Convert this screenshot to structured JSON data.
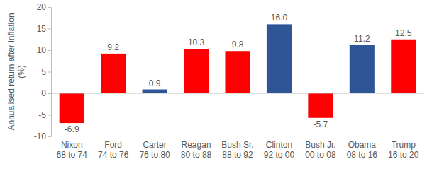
{
  "chart_data": {
    "type": "bar",
    "y_label": "Annualised return after inflation\n(%)",
    "categories": [
      "Nixon\n68 to 74",
      "Ford\n74 to 76",
      "Carter\n76 to 80",
      "Reagan\n80 to 88",
      "Bush Sr.\n88 to 92",
      "Clinton\n92 to 00",
      "Bush Jr.\n00 to 08",
      "Obama\n08 to 16",
      "Trump\n16 to 20"
    ],
    "values": [
      -6.9,
      9.2,
      0.9,
      10.3,
      9.8,
      16.0,
      -5.7,
      11.2,
      12.5
    ],
    "value_labels": [
      "-6.9",
      "9.2",
      "0.9",
      "10.3",
      "9.8",
      "16.0",
      "-5.7",
      "11.2",
      "12.5"
    ],
    "colors": [
      "#ff0000",
      "#ff0000",
      "#2e5597",
      "#ff0000",
      "#ff0000",
      "#2e5597",
      "#ff0000",
      "#2e5597",
      "#ff0000"
    ],
    "ylim": [
      -10,
      20
    ],
    "yticks": [
      -10,
      -5,
      0,
      5,
      10,
      15,
      20
    ],
    "data_labels": true,
    "grid": false
  }
}
